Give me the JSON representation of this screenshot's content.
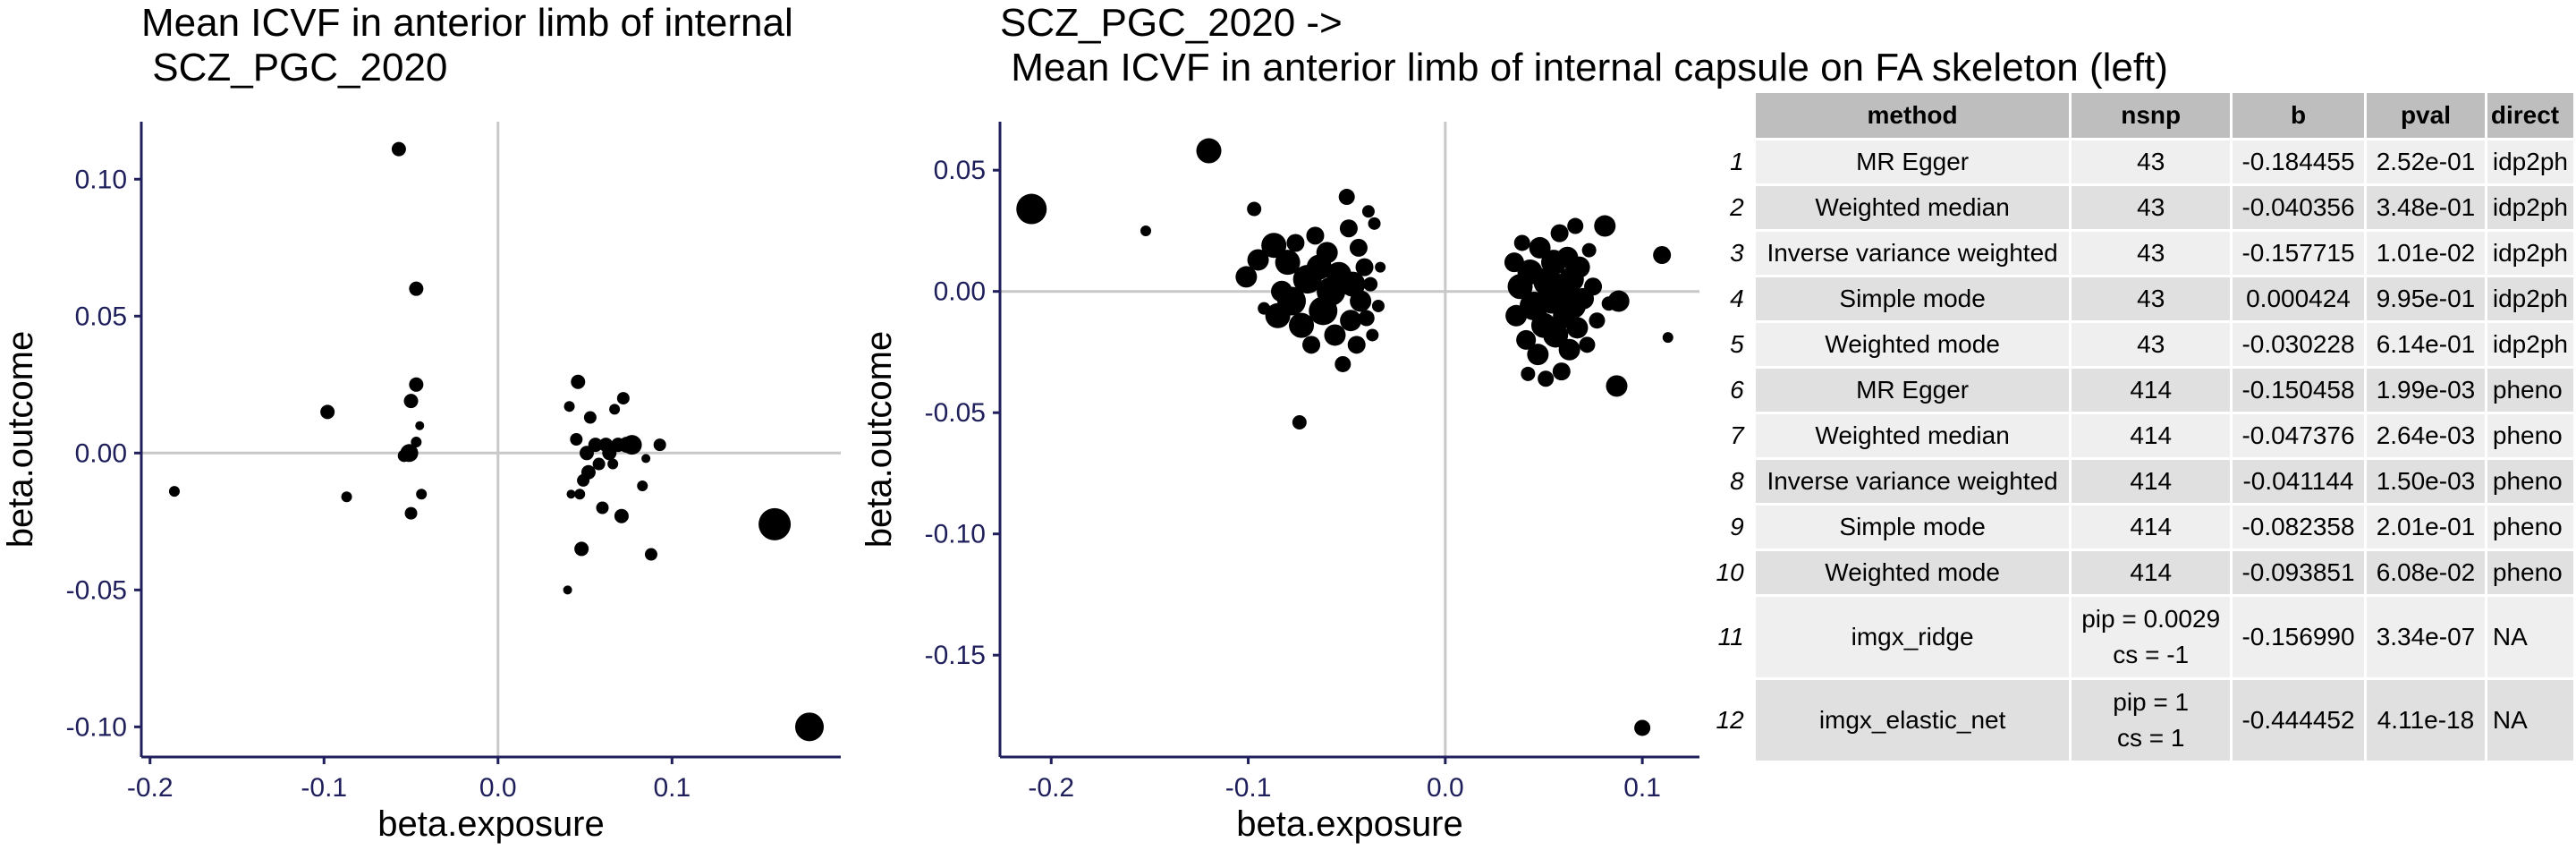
{
  "chart_data": [
    {
      "type": "scatter",
      "title_lines": [
        "Mean ICVF in anterior limb of internal",
        " SCZ_PGC_2020"
      ],
      "xlabel": "beta.exposure",
      "ylabel": "beta.outcome",
      "xlim": [
        -0.205,
        0.197
      ],
      "ylim": [
        -0.111,
        0.121
      ],
      "xticks": [
        -0.2,
        -0.1,
        0.0,
        0.1
      ],
      "xtick_labels": [
        "-0.2",
        "-0.1",
        "0.0",
        "0.1"
      ],
      "yticks": [
        -0.1,
        -0.05,
        0.0,
        0.05,
        0.1
      ],
      "ytick_labels": [
        "-0.10",
        "-0.05",
        "0.00",
        "0.05",
        "0.10"
      ],
      "reference_lines": {
        "x": 0,
        "y": 0
      },
      "points": [
        {
          "x": -0.186,
          "y": -0.014,
          "r": 6
        },
        {
          "x": -0.098,
          "y": 0.015,
          "r": 8
        },
        {
          "x": -0.087,
          "y": -0.016,
          "r": 6
        },
        {
          "x": -0.057,
          "y": 0.111,
          "r": 8
        },
        {
          "x": -0.054,
          "y": -0.001,
          "r": 7
        },
        {
          "x": -0.051,
          "y": 0.0,
          "r": 10
        },
        {
          "x": -0.05,
          "y": -0.022,
          "r": 7
        },
        {
          "x": -0.05,
          "y": 0.019,
          "r": 8
        },
        {
          "x": -0.047,
          "y": 0.06,
          "r": 8
        },
        {
          "x": -0.047,
          "y": 0.025,
          "r": 8
        },
        {
          "x": -0.047,
          "y": 0.004,
          "r": 6
        },
        {
          "x": -0.045,
          "y": 0.01,
          "r": 5
        },
        {
          "x": -0.044,
          "y": -0.015,
          "r": 6
        },
        {
          "x": 0.04,
          "y": -0.05,
          "r": 5
        },
        {
          "x": 0.041,
          "y": 0.017,
          "r": 6
        },
        {
          "x": 0.042,
          "y": -0.015,
          "r": 5
        },
        {
          "x": 0.045,
          "y": 0.005,
          "r": 7
        },
        {
          "x": 0.046,
          "y": 0.026,
          "r": 8
        },
        {
          "x": 0.047,
          "y": -0.015,
          "r": 6
        },
        {
          "x": 0.048,
          "y": -0.035,
          "r": 8
        },
        {
          "x": 0.049,
          "y": -0.01,
          "r": 7
        },
        {
          "x": 0.051,
          "y": 0.0,
          "r": 8
        },
        {
          "x": 0.052,
          "y": -0.007,
          "r": 8
        },
        {
          "x": 0.053,
          "y": 0.013,
          "r": 7
        },
        {
          "x": 0.056,
          "y": 0.003,
          "r": 8
        },
        {
          "x": 0.058,
          "y": -0.004,
          "r": 7
        },
        {
          "x": 0.06,
          "y": -0.02,
          "r": 7
        },
        {
          "x": 0.062,
          "y": 0.003,
          "r": 8
        },
        {
          "x": 0.064,
          "y": 0.0,
          "r": 8
        },
        {
          "x": 0.066,
          "y": -0.004,
          "r": 6
        },
        {
          "x": 0.067,
          "y": 0.016,
          "r": 6
        },
        {
          "x": 0.069,
          "y": 0.003,
          "r": 8
        },
        {
          "x": 0.071,
          "y": -0.023,
          "r": 8
        },
        {
          "x": 0.072,
          "y": 0.02,
          "r": 7
        },
        {
          "x": 0.074,
          "y": 0.003,
          "r": 9
        },
        {
          "x": 0.077,
          "y": 0.003,
          "r": 11
        },
        {
          "x": 0.083,
          "y": -0.012,
          "r": 6
        },
        {
          "x": 0.085,
          "y": -0.002,
          "r": 5
        },
        {
          "x": 0.088,
          "y": -0.037,
          "r": 7
        },
        {
          "x": 0.093,
          "y": 0.003,
          "r": 7
        },
        {
          "x": 0.159,
          "y": -0.026,
          "r": 18
        },
        {
          "x": 0.179,
          "y": -0.1,
          "r": 16
        }
      ]
    },
    {
      "type": "scatter",
      "title_lines": [
        "SCZ_PGC_2020 ->",
        " Mean ICVF in anterior limb of internal capsule on FA skeleton (left)"
      ],
      "xlabel": "beta.exposure",
      "ylabel": "beta.outcome",
      "xlim": [
        -0.226,
        0.129
      ],
      "ylim": [
        -0.192,
        0.07
      ],
      "xticks": [
        -0.2,
        -0.1,
        0.0,
        0.1
      ],
      "xtick_labels": [
        "-0.2",
        "-0.1",
        "0.0",
        "0.1"
      ],
      "yticks": [
        -0.15,
        -0.1,
        -0.05,
        0.0,
        0.05
      ],
      "ytick_labels": [
        "-0.15",
        "-0.10",
        "-0.05",
        "0.00",
        "0.05"
      ],
      "reference_lines": {
        "x": 0,
        "y": 0
      },
      "points": [
        {
          "x": -0.21,
          "y": 0.034,
          "r": 17
        },
        {
          "x": -0.152,
          "y": 0.025,
          "r": 6
        },
        {
          "x": -0.12,
          "y": 0.058,
          "r": 14
        },
        {
          "x": -0.101,
          "y": 0.006,
          "r": 12
        },
        {
          "x": -0.097,
          "y": 0.034,
          "r": 8
        },
        {
          "x": -0.095,
          "y": 0.013,
          "r": 12
        },
        {
          "x": -0.092,
          "y": -0.007,
          "r": 7
        },
        {
          "x": -0.087,
          "y": 0.019,
          "r": 14
        },
        {
          "x": -0.085,
          "y": -0.01,
          "r": 14
        },
        {
          "x": -0.083,
          "y": 0.0,
          "r": 12
        },
        {
          "x": -0.08,
          "y": 0.012,
          "r": 14
        },
        {
          "x": -0.078,
          "y": -0.004,
          "r": 16
        },
        {
          "x": -0.076,
          "y": 0.02,
          "r": 10
        },
        {
          "x": -0.074,
          "y": -0.054,
          "r": 8
        },
        {
          "x": -0.073,
          "y": -0.014,
          "r": 14
        },
        {
          "x": -0.07,
          "y": 0.005,
          "r": 16
        },
        {
          "x": -0.068,
          "y": -0.022,
          "r": 10
        },
        {
          "x": -0.066,
          "y": 0.023,
          "r": 10
        },
        {
          "x": -0.064,
          "y": 0.01,
          "r": 14
        },
        {
          "x": -0.062,
          "y": -0.008,
          "r": 16
        },
        {
          "x": -0.06,
          "y": 0.016,
          "r": 12
        },
        {
          "x": -0.058,
          "y": 0.0,
          "r": 16
        },
        {
          "x": -0.056,
          "y": -0.018,
          "r": 12
        },
        {
          "x": -0.054,
          "y": 0.007,
          "r": 14
        },
        {
          "x": -0.052,
          "y": -0.03,
          "r": 9
        },
        {
          "x": -0.05,
          "y": 0.039,
          "r": 9
        },
        {
          "x": -0.049,
          "y": 0.026,
          "r": 10
        },
        {
          "x": -0.048,
          "y": -0.012,
          "r": 12
        },
        {
          "x": -0.047,
          "y": 0.003,
          "r": 14
        },
        {
          "x": -0.045,
          "y": -0.022,
          "r": 10
        },
        {
          "x": -0.044,
          "y": 0.018,
          "r": 10
        },
        {
          "x": -0.043,
          "y": -0.004,
          "r": 12
        },
        {
          "x": -0.041,
          "y": 0.01,
          "r": 10
        },
        {
          "x": -0.04,
          "y": -0.011,
          "r": 9
        },
        {
          "x": -0.039,
          "y": 0.033,
          "r": 7
        },
        {
          "x": -0.038,
          "y": 0.003,
          "r": 8
        },
        {
          "x": -0.037,
          "y": -0.018,
          "r": 7
        },
        {
          "x": -0.036,
          "y": 0.028,
          "r": 7
        },
        {
          "x": -0.034,
          "y": -0.006,
          "r": 7
        },
        {
          "x": -0.033,
          "y": 0.01,
          "r": 6
        },
        {
          "x": 0.035,
          "y": 0.012,
          "r": 11
        },
        {
          "x": 0.036,
          "y": -0.01,
          "r": 12
        },
        {
          "x": 0.038,
          "y": 0.002,
          "r": 14
        },
        {
          "x": 0.039,
          "y": 0.02,
          "r": 9
        },
        {
          "x": 0.041,
          "y": -0.02,
          "r": 11
        },
        {
          "x": 0.042,
          "y": -0.034,
          "r": 8
        },
        {
          "x": 0.043,
          "y": 0.008,
          "r": 14
        },
        {
          "x": 0.045,
          "y": -0.006,
          "r": 16
        },
        {
          "x": 0.047,
          "y": -0.026,
          "r": 12
        },
        {
          "x": 0.048,
          "y": 0.018,
          "r": 12
        },
        {
          "x": 0.05,
          "y": -0.014,
          "r": 14
        },
        {
          "x": 0.051,
          "y": -0.036,
          "r": 9
        },
        {
          "x": 0.052,
          "y": 0.004,
          "r": 16
        },
        {
          "x": 0.054,
          "y": -0.004,
          "r": 14
        },
        {
          "x": 0.055,
          "y": 0.012,
          "r": 14
        },
        {
          "x": 0.056,
          "y": -0.018,
          "r": 14
        },
        {
          "x": 0.058,
          "y": 0.024,
          "r": 10
        },
        {
          "x": 0.059,
          "y": -0.033,
          "r": 10
        },
        {
          "x": 0.06,
          "y": 0.0,
          "r": 16
        },
        {
          "x": 0.061,
          "y": -0.01,
          "r": 14
        },
        {
          "x": 0.062,
          "y": 0.014,
          "r": 12
        },
        {
          "x": 0.063,
          "y": -0.024,
          "r": 12
        },
        {
          "x": 0.064,
          "y": 0.005,
          "r": 14
        },
        {
          "x": 0.065,
          "y": -0.006,
          "r": 14
        },
        {
          "x": 0.066,
          "y": 0.027,
          "r": 9
        },
        {
          "x": 0.067,
          "y": -0.015,
          "r": 12
        },
        {
          "x": 0.068,
          "y": 0.01,
          "r": 12
        },
        {
          "x": 0.07,
          "y": -0.003,
          "r": 12
        },
        {
          "x": 0.072,
          "y": -0.022,
          "r": 9
        },
        {
          "x": 0.073,
          "y": 0.017,
          "r": 8
        },
        {
          "x": 0.075,
          "y": 0.002,
          "r": 10
        },
        {
          "x": 0.077,
          "y": -0.012,
          "r": 9
        },
        {
          "x": 0.081,
          "y": 0.027,
          "r": 12
        },
        {
          "x": 0.083,
          "y": -0.005,
          "r": 8
        },
        {
          "x": 0.087,
          "y": -0.039,
          "r": 12
        },
        {
          "x": 0.088,
          "y": -0.004,
          "r": 12
        },
        {
          "x": 0.1,
          "y": -0.18,
          "r": 9
        },
        {
          "x": 0.11,
          "y": 0.015,
          "r": 10
        },
        {
          "x": 0.113,
          "y": -0.019,
          "r": 6
        }
      ]
    }
  ],
  "table": {
    "headers": [
      "method",
      "nsnp",
      "b",
      "pval",
      "direct"
    ],
    "rows": [
      {
        "n": "1",
        "method": "MR Egger",
        "nsnp": "43",
        "b": "-0.184455",
        "pval": "2.52e-01",
        "direction": "idp2ph"
      },
      {
        "n": "2",
        "method": "Weighted median",
        "nsnp": "43",
        "b": "-0.040356",
        "pval": "3.48e-01",
        "direction": "idp2ph"
      },
      {
        "n": "3",
        "method": "Inverse variance weighted",
        "nsnp": "43",
        "b": "-0.157715",
        "pval": "1.01e-02",
        "direction": "idp2ph"
      },
      {
        "n": "4",
        "method": "Simple mode",
        "nsnp": "43",
        "b": "0.000424",
        "pval": "9.95e-01",
        "direction": "idp2ph"
      },
      {
        "n": "5",
        "method": "Weighted mode",
        "nsnp": "43",
        "b": "-0.030228",
        "pval": "6.14e-01",
        "direction": "idp2ph"
      },
      {
        "n": "6",
        "method": "MR Egger",
        "nsnp": "414",
        "b": "-0.150458",
        "pval": "1.99e-03",
        "direction": "pheno"
      },
      {
        "n": "7",
        "method": "Weighted median",
        "nsnp": "414",
        "b": "-0.047376",
        "pval": "2.64e-03",
        "direction": "pheno"
      },
      {
        "n": "8",
        "method": "Inverse variance weighted",
        "nsnp": "414",
        "b": "-0.041144",
        "pval": "1.50e-03",
        "direction": "pheno"
      },
      {
        "n": "9",
        "method": "Simple mode",
        "nsnp": "414",
        "b": "-0.082358",
        "pval": "2.01e-01",
        "direction": "pheno"
      },
      {
        "n": "10",
        "method": "Weighted mode",
        "nsnp": "414",
        "b": "-0.093851",
        "pval": "6.08e-02",
        "direction": "pheno"
      },
      {
        "n": "11",
        "method": "imgx_ridge",
        "nsnp_line1": "pip = 0.0029",
        "nsnp_line2": "cs = -1",
        "b": "-0.156990",
        "pval": "3.34e-07",
        "direction": "NA"
      },
      {
        "n": "12",
        "method": "imgx_elastic_net",
        "nsnp_line1": "pip = 1",
        "nsnp_line2": "cs = 1",
        "b": "-0.444452",
        "pval": "4.11e-18",
        "direction": "NA"
      }
    ]
  }
}
